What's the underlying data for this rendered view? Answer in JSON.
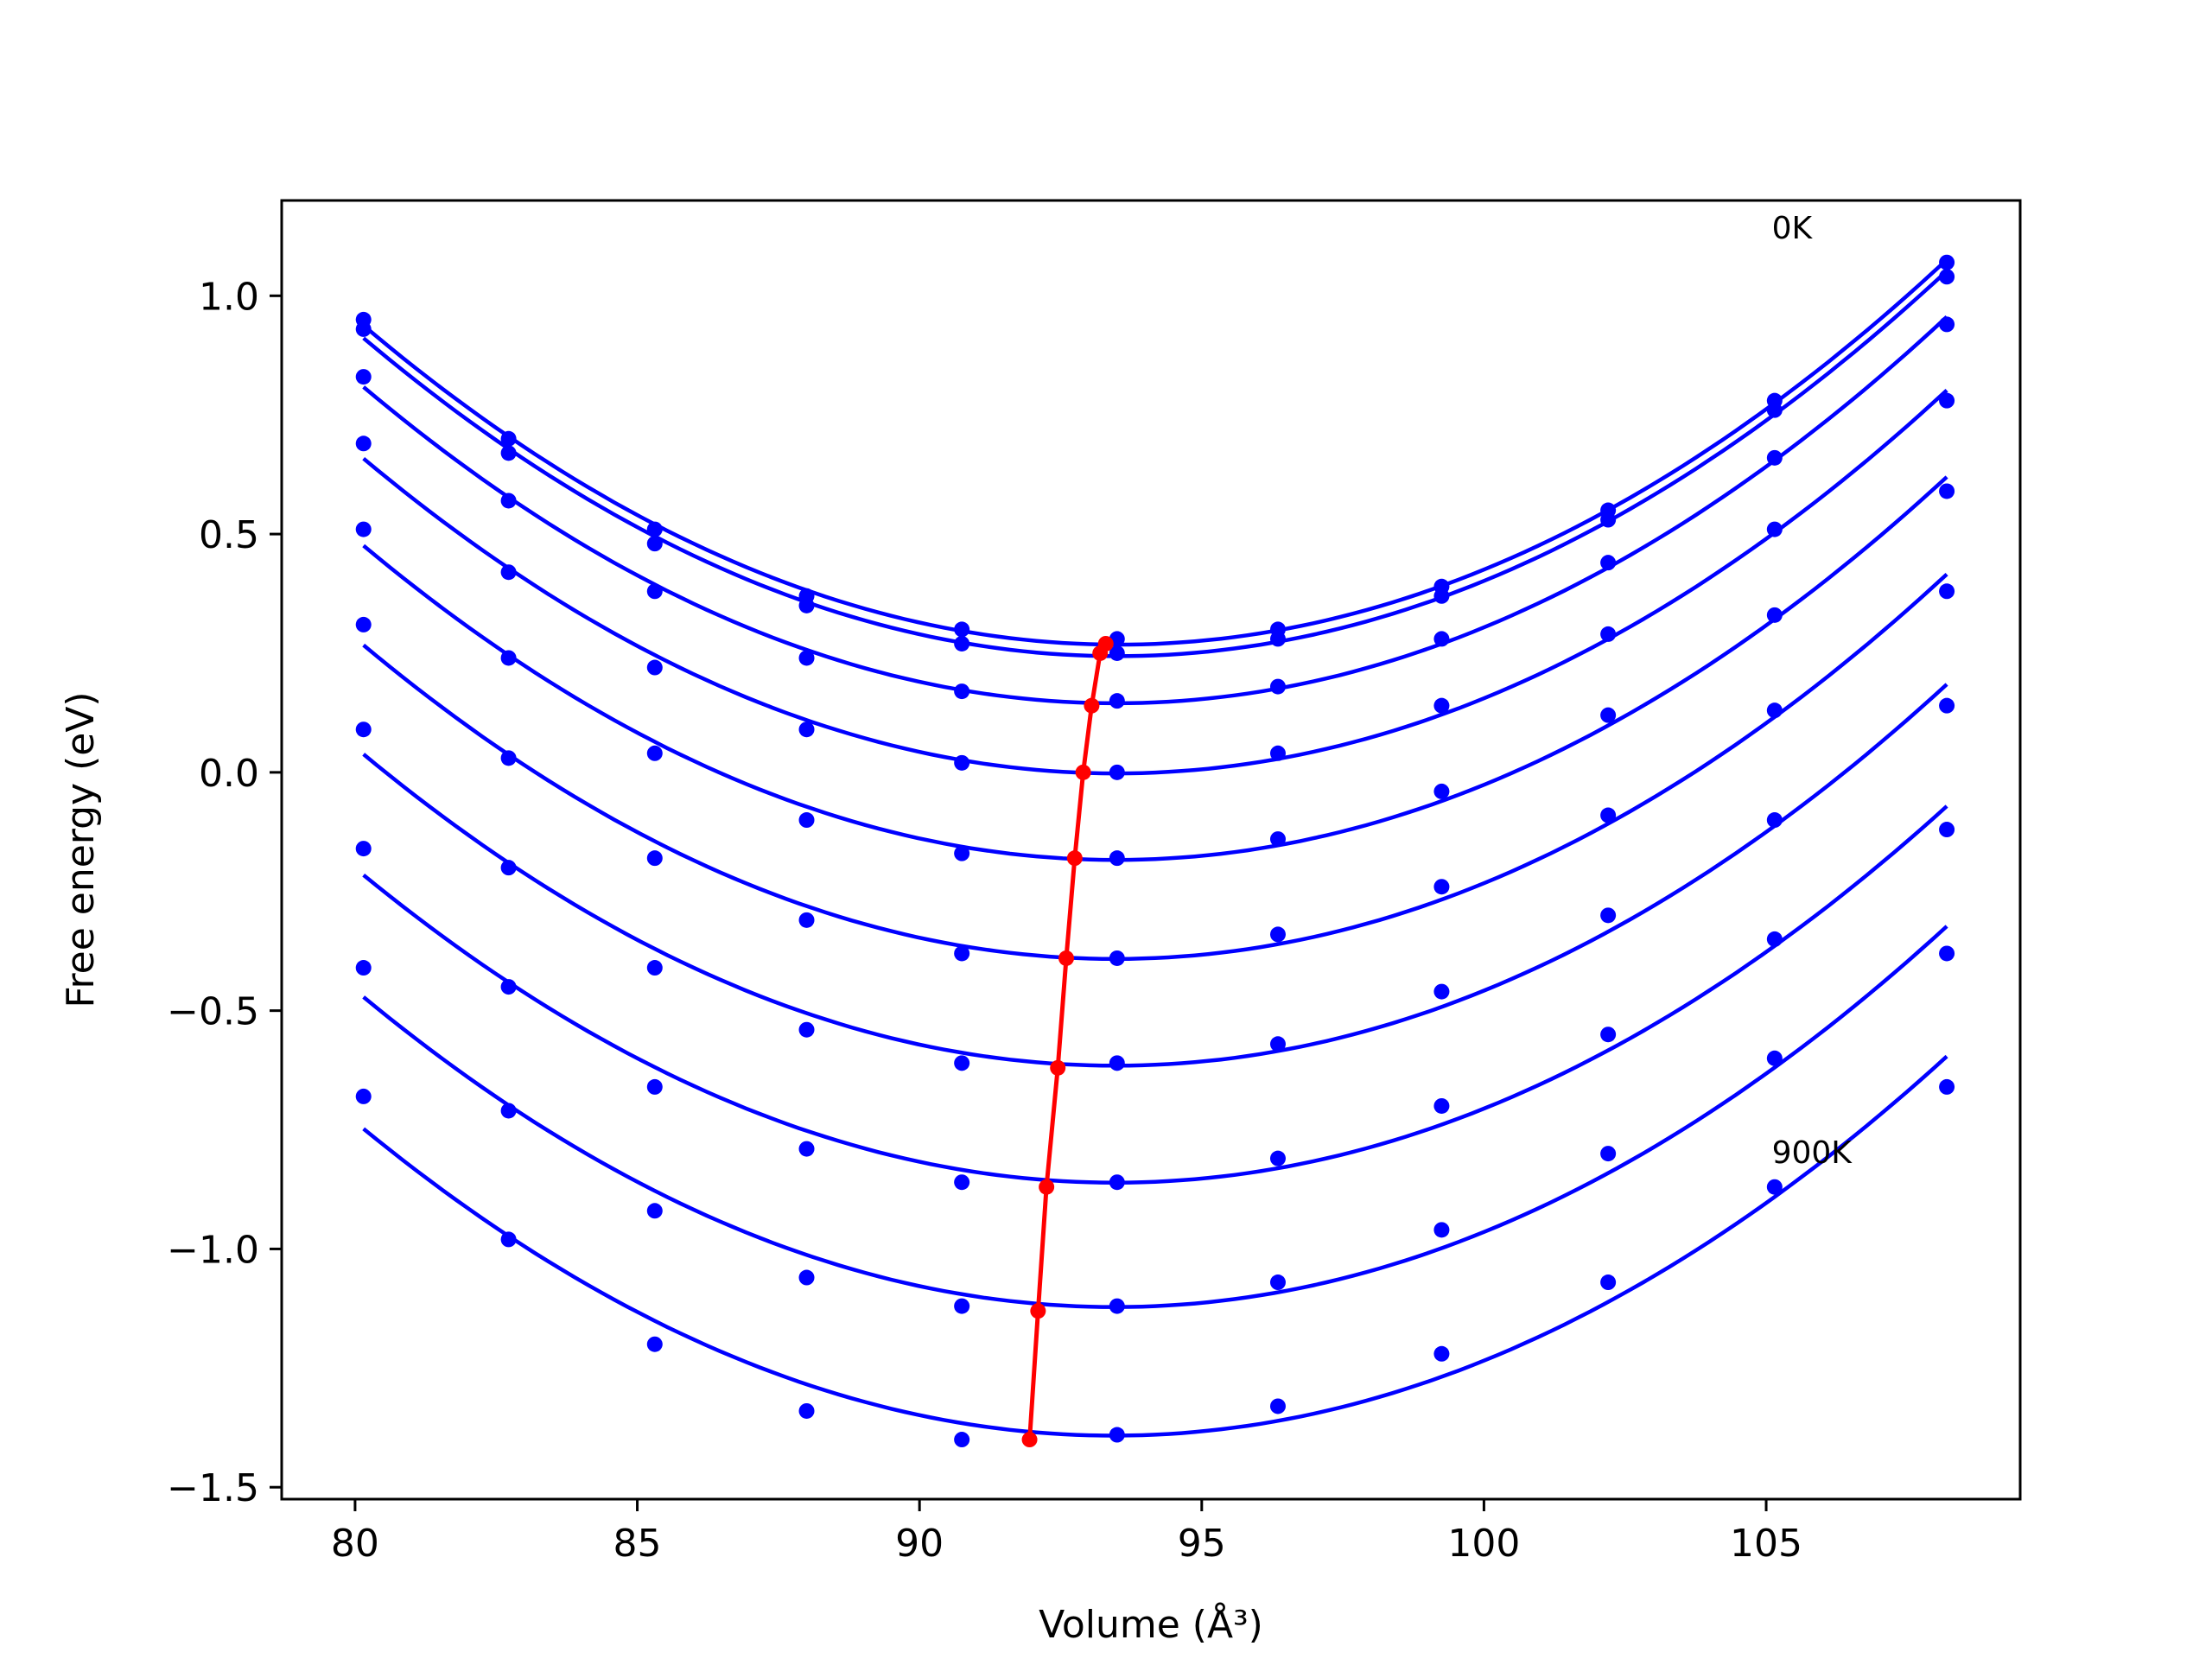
{
  "chart_data": {
    "type": "line",
    "xlabel": "Volume (Å³)",
    "ylabel": "Free energy (eV)",
    "xlim": [
      78.7,
      109.5
    ],
    "ylim": [
      -1.525,
      1.2
    ],
    "xticks": [
      80,
      85,
      90,
      95,
      100,
      105
    ],
    "xtick_labels": [
      "80",
      "85",
      "90",
      "95",
      "100",
      "105"
    ],
    "yticks": [
      -1.5,
      -1.0,
      -0.5,
      0.0,
      0.5,
      1.0
    ],
    "ytick_labels": [
      "−1.5",
      "−1.0",
      "−0.5",
      "0.0",
      "0.5",
      "1.0"
    ],
    "grid": false,
    "colors": {
      "curves": "#0000ff",
      "minimum": "#ff0000"
    },
    "annotations": [
      {
        "text": "0K",
        "x": 105.1,
        "y": 1.12
      },
      {
        "text": "900K",
        "x": 105.1,
        "y": -0.82
      }
    ],
    "x": [
      80.15,
      82.72,
      85.31,
      88.0,
      90.75,
      93.5,
      96.35,
      99.25,
      102.2,
      105.15,
      108.2
    ],
    "series": [
      {
        "values": [
          0.95,
          0.7,
          0.51,
          0.37,
          0.3,
          0.28,
          0.3,
          0.39,
          0.55,
          0.78,
          1.07
        ]
      },
      {
        "values": [
          0.93,
          0.67,
          0.48,
          0.35,
          0.27,
          0.25,
          0.28,
          0.37,
          0.53,
          0.76,
          1.04
        ]
      },
      {
        "values": [
          0.83,
          0.57,
          0.38,
          0.24,
          0.17,
          0.15,
          0.18,
          0.28,
          0.44,
          0.66,
          0.94
        ]
      },
      {
        "values": [
          0.69,
          0.42,
          0.22,
          0.09,
          0.02,
          0.0,
          0.04,
          0.14,
          0.29,
          0.51,
          0.78
        ]
      },
      {
        "values": [
          0.51,
          0.24,
          0.04,
          -0.1,
          -0.17,
          -0.18,
          -0.14,
          -0.04,
          0.12,
          0.33,
          0.59
        ]
      },
      {
        "values": [
          0.31,
          0.03,
          -0.18,
          -0.31,
          -0.38,
          -0.39,
          -0.34,
          -0.24,
          -0.09,
          0.13,
          0.38
        ]
      },
      {
        "values": [
          0.09,
          -0.2,
          -0.41,
          -0.54,
          -0.61,
          -0.61,
          -0.57,
          -0.46,
          -0.3,
          -0.1,
          0.14
        ]
      },
      {
        "values": [
          -0.16,
          -0.45,
          -0.66,
          -0.79,
          -0.86,
          -0.86,
          -0.81,
          -0.7,
          -0.55,
          -0.35,
          -0.12
        ]
      },
      {
        "values": [
          -0.41,
          -0.71,
          -0.92,
          -1.06,
          -1.12,
          -1.12,
          -1.07,
          -0.96,
          -0.8,
          -0.6,
          -0.38
        ]
      },
      {
        "values": [
          -0.68,
          -0.98,
          -1.2,
          -1.34,
          -1.4,
          -1.39,
          -1.33,
          -1.22,
          -1.07,
          -0.87,
          -0.66
        ]
      }
    ],
    "minimum_line": {
      "x": [
        93.3,
        93.2,
        93.05,
        92.9,
        92.75,
        92.6,
        92.45,
        92.25,
        92.1,
        91.95
      ],
      "y": [
        0.27,
        0.25,
        0.14,
        0.0,
        -0.18,
        -0.39,
        -0.62,
        -0.87,
        -1.13,
        -1.4
      ]
    }
  }
}
